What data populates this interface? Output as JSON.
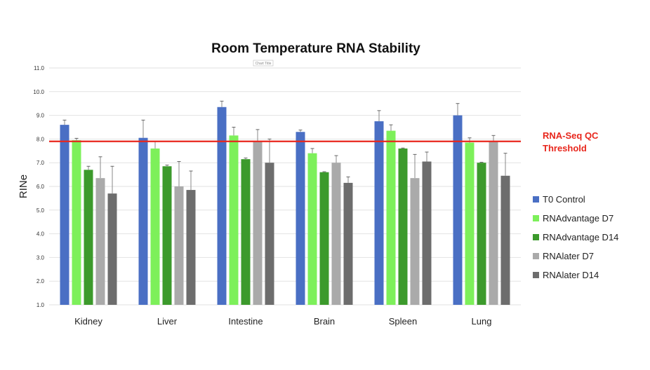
{
  "chart_data": {
    "type": "bar",
    "title": "Room Temperature RNA Stability",
    "ylabel": "RINe",
    "xlabel": "",
    "ylim": [
      1.0,
      11.0
    ],
    "yticks": [
      "1.0",
      "2.0",
      "3.0",
      "4.0",
      "5.0",
      "6.0",
      "7.0",
      "8.0",
      "9.0",
      "10.0",
      "11.0"
    ],
    "grid": true,
    "legend_position": "right",
    "categories": [
      "Kidney",
      "Liver",
      "Intestine",
      "Brain",
      "Spleen",
      "Lung"
    ],
    "series": [
      {
        "name": "T0 Control",
        "color": "#4a6fc4",
        "values": [
          8.6,
          8.05,
          9.35,
          8.3,
          8.75,
          9.0
        ],
        "errors": [
          0.2,
          0.75,
          0.25,
          0.08,
          0.45,
          0.5
        ]
      },
      {
        "name": "RNAdvantage D7",
        "color": "#7df05a",
        "values": [
          7.95,
          7.6,
          8.15,
          7.4,
          8.35,
          7.85
        ],
        "errors": [
          0.08,
          0.3,
          0.35,
          0.2,
          0.25,
          0.2
        ]
      },
      {
        "name": "RNAdvantage D14",
        "color": "#3c9a2c",
        "values": [
          6.7,
          6.85,
          7.15,
          6.6,
          7.6,
          7.0
        ],
        "errors": [
          0.15,
          0.05,
          0.05,
          0.02,
          0.02,
          0.02
        ]
      },
      {
        "name": "RNAlater D7",
        "color": "#aaaaaa",
        "values": [
          6.35,
          6.0,
          7.9,
          7.0,
          6.35,
          7.9
        ],
        "errors": [
          0.9,
          1.05,
          0.5,
          0.3,
          1.0,
          0.25
        ]
      },
      {
        "name": "RNAlater D14",
        "color": "#6d6d6d",
        "values": [
          5.7,
          5.85,
          7.0,
          6.15,
          7.05,
          6.45
        ],
        "errors": [
          1.15,
          0.8,
          1.0,
          0.25,
          0.4,
          0.95
        ]
      }
    ],
    "threshold": {
      "value": 7.9,
      "color": "#e8261c",
      "label_lines": [
        "RNA-Seq QC",
        "Threshold"
      ]
    },
    "small_annotation": "Chart Title"
  }
}
